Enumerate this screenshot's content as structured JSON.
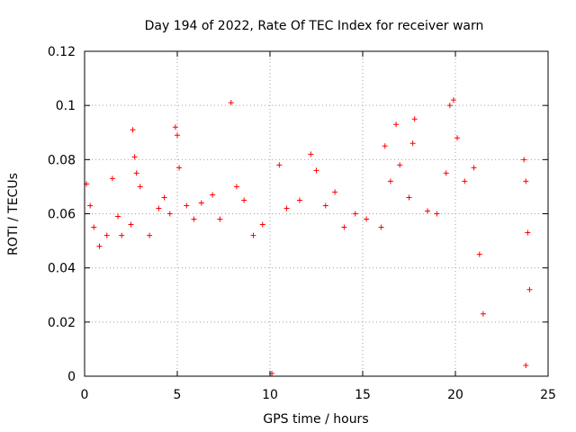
{
  "chart_data": {
    "type": "scatter",
    "title": "Day 194 of 2022, Rate Of TEC Index for receiver warn",
    "xlabel": "GPS time / hours",
    "ylabel": "ROTI / TECUs",
    "xlim": [
      0,
      25
    ],
    "ylim": [
      0,
      0.12
    ],
    "xticks": [
      "0",
      "5",
      "10",
      "15",
      "20",
      "25"
    ],
    "yticks": [
      "0",
      "0.02",
      "0.04",
      "0.06",
      "0.08",
      "0.1",
      "0.12"
    ],
    "grid": true,
    "marker": "plus",
    "color": "#ff0000",
    "data_gap_hours": [
      21.6,
      23.6
    ],
    "series": [
      {
        "points": [
          [
            0.1,
            0.071
          ],
          [
            0.3,
            0.063
          ],
          [
            0.5,
            0.055
          ],
          [
            0.8,
            0.048
          ],
          [
            1.2,
            0.052
          ],
          [
            1.5,
            0.073
          ],
          [
            1.8,
            0.059
          ],
          [
            2.0,
            0.052
          ],
          [
            2.5,
            0.056
          ],
          [
            2.6,
            0.091
          ],
          [
            2.7,
            0.081
          ],
          [
            2.8,
            0.075
          ],
          [
            3.0,
            0.07
          ],
          [
            3.5,
            0.052
          ],
          [
            4.0,
            0.062
          ],
          [
            4.3,
            0.066
          ],
          [
            4.6,
            0.06
          ],
          [
            4.9,
            0.092
          ],
          [
            5.0,
            0.089
          ],
          [
            5.1,
            0.077
          ],
          [
            5.5,
            0.063
          ],
          [
            5.9,
            0.058
          ],
          [
            6.3,
            0.064
          ],
          [
            6.9,
            0.067
          ],
          [
            7.3,
            0.058
          ],
          [
            7.9,
            0.101
          ],
          [
            8.2,
            0.07
          ],
          [
            8.6,
            0.065
          ],
          [
            9.1,
            0.052
          ],
          [
            9.6,
            0.056
          ],
          [
            10.1,
            0.001
          ],
          [
            10.5,
            0.078
          ],
          [
            10.9,
            0.062
          ],
          [
            11.6,
            0.065
          ],
          [
            12.2,
            0.082
          ],
          [
            12.5,
            0.076
          ],
          [
            13.0,
            0.063
          ],
          [
            13.5,
            0.068
          ],
          [
            14.0,
            0.055
          ],
          [
            14.6,
            0.06
          ],
          [
            15.2,
            0.058
          ],
          [
            16.0,
            0.055
          ],
          [
            16.2,
            0.085
          ],
          [
            16.5,
            0.072
          ],
          [
            16.8,
            0.093
          ],
          [
            17.0,
            0.078
          ],
          [
            17.5,
            0.066
          ],
          [
            17.8,
            0.095
          ],
          [
            17.7,
            0.086
          ],
          [
            18.5,
            0.061
          ],
          [
            19.0,
            0.06
          ],
          [
            19.5,
            0.075
          ],
          [
            19.7,
            0.1
          ],
          [
            19.9,
            0.102
          ],
          [
            20.1,
            0.088
          ],
          [
            20.5,
            0.072
          ],
          [
            21.0,
            0.077
          ],
          [
            21.3,
            0.045
          ],
          [
            21.5,
            0.023
          ],
          [
            23.7,
            0.08
          ],
          [
            23.8,
            0.072
          ],
          [
            23.9,
            0.053
          ],
          [
            24.0,
            0.032
          ],
          [
            23.8,
            0.004
          ]
        ]
      }
    ]
  }
}
